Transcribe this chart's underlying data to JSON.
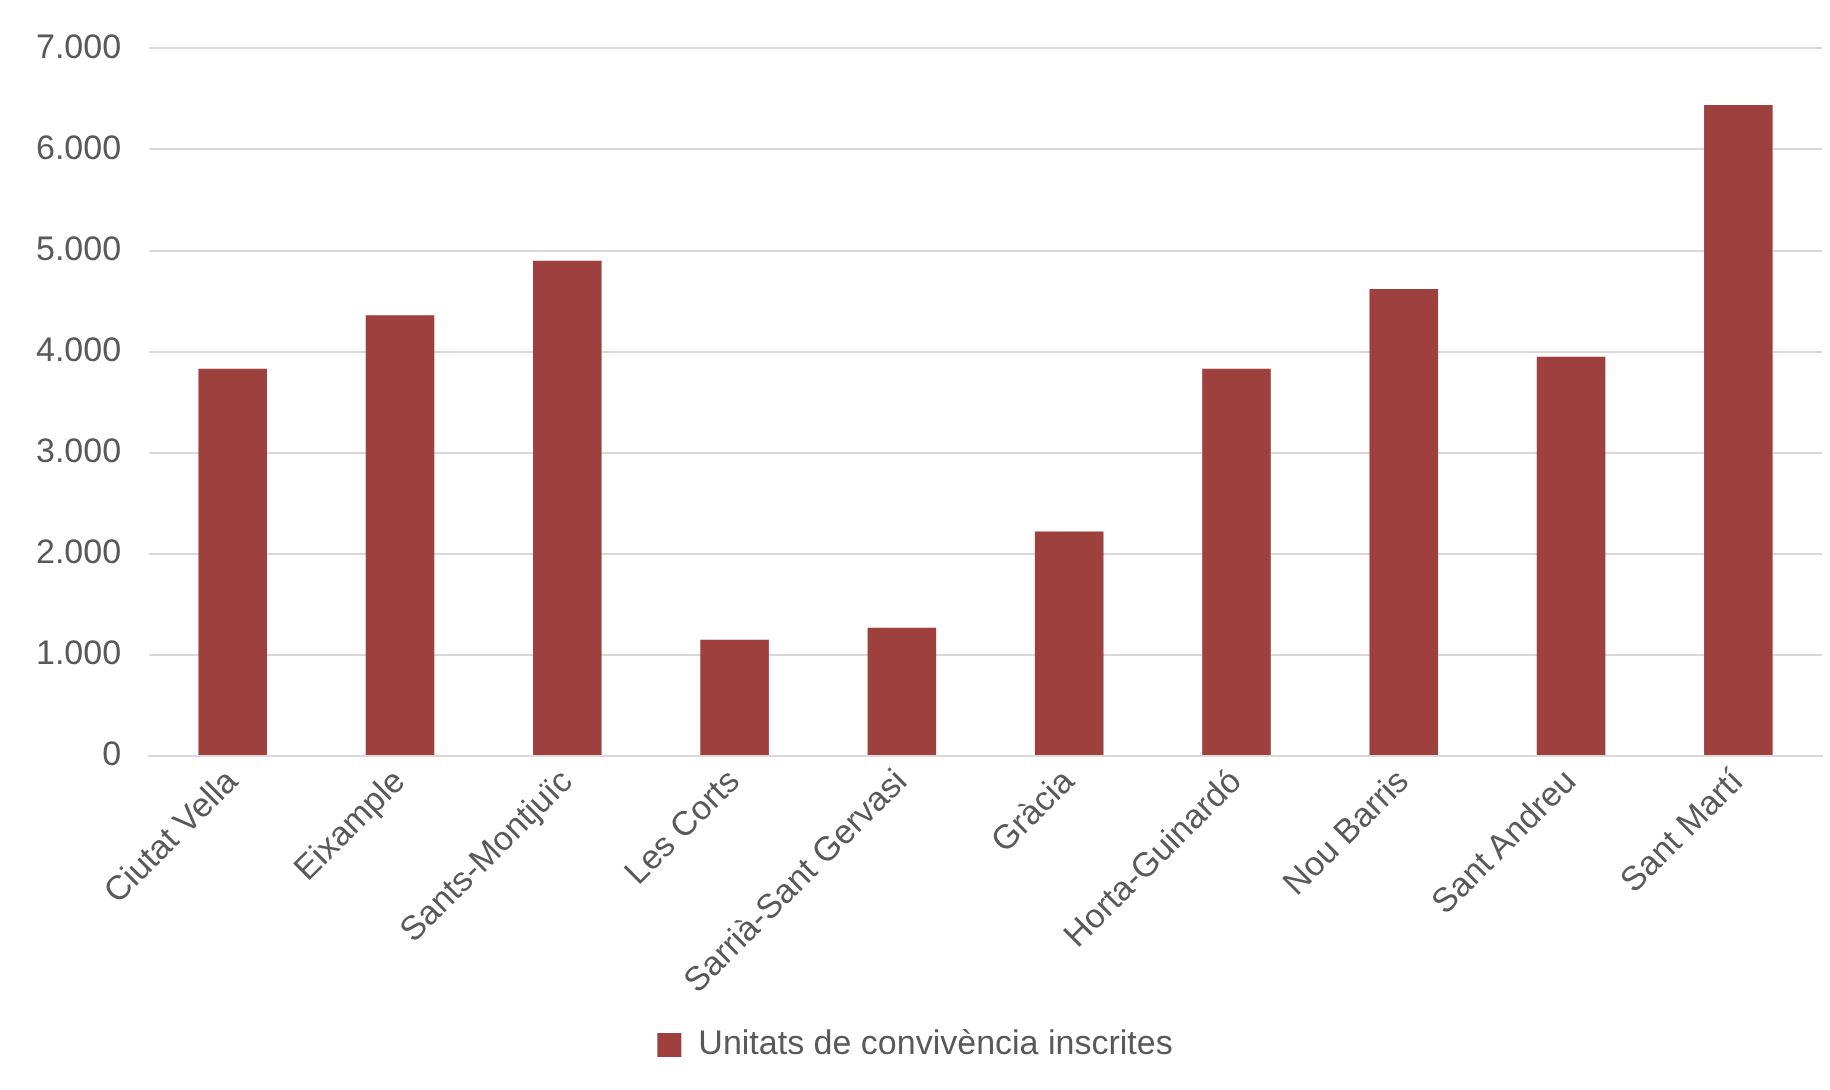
{
  "chart_data": {
    "type": "bar",
    "categories": [
      "Ciutat Vella",
      "Eixample",
      "Sants-Montjuïc",
      "Les Corts",
      "Sarrià-Sant Gervasi",
      "Gràcia",
      "Horta-Guinardó",
      "Nou Barris",
      "Sant Andreu",
      "Sant Martí"
    ],
    "series": [
      {
        "name": "Unitats de convivència inscrites",
        "color": "#9e413e",
        "values": [
          3830,
          4360,
          4900,
          1150,
          1270,
          2220,
          3830,
          4620,
          3950,
          6440
        ]
      }
    ],
    "ylim": [
      0,
      7000
    ],
    "yticks": [
      0,
      {
        "value": 1000,
        "label": "1.000"
      },
      {
        "value": 2000,
        "label": "2.000"
      },
      {
        "value": 3000,
        "label": "3.000"
      },
      {
        "value": 4000,
        "label": "4.000"
      },
      {
        "value": 5000,
        "label": "5.000"
      },
      {
        "value": 6000,
        "label": "6.000"
      },
      {
        "value": 7000,
        "label": "7.000"
      }
    ],
    "grid": "y",
    "legend": "bottom"
  }
}
